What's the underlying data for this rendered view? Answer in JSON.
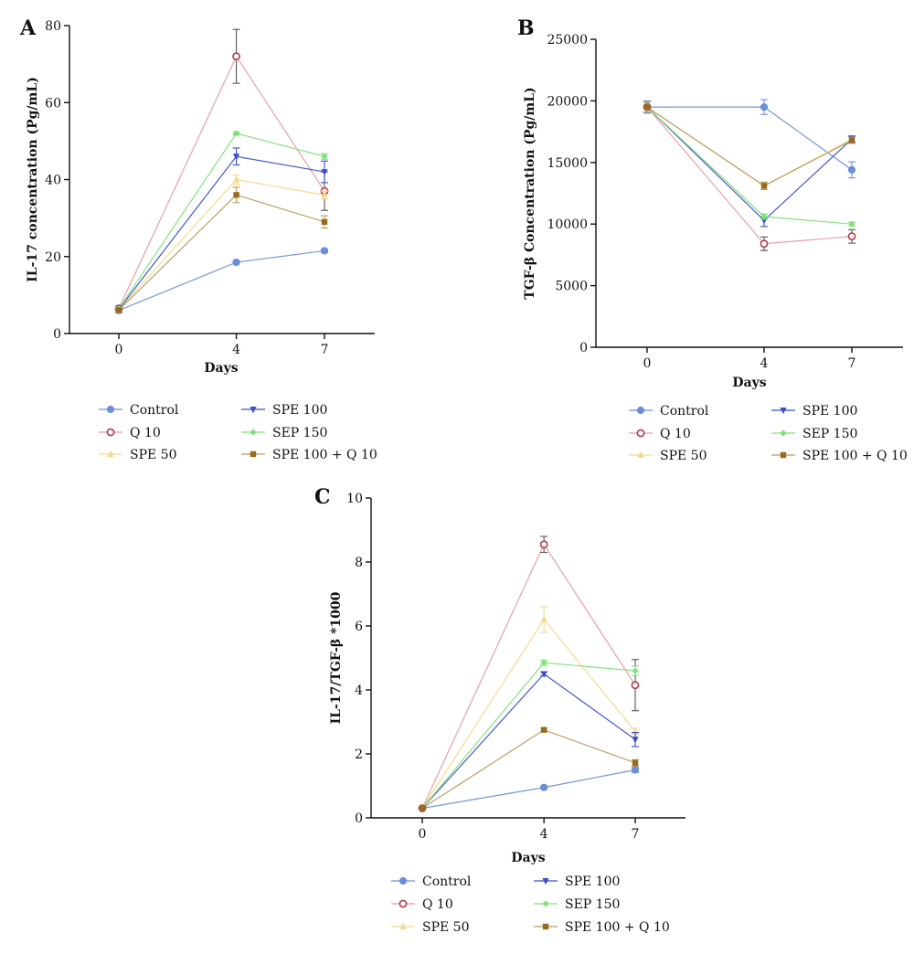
{
  "chart_data": [
    {
      "panel": "A",
      "type": "line",
      "xlabel": "Days",
      "ylabel": "IL-17 concentration (Pg/mL)",
      "x": [
        0,
        4,
        7
      ],
      "xticks": [
        "0",
        "4",
        "7"
      ],
      "ylim": [
        0,
        80
      ],
      "yticks": [
        "0",
        "20",
        "40",
        "60",
        "80"
      ],
      "grid": false,
      "legend_position": "bottom",
      "series": [
        {
          "name": "Control",
          "values": [
            6,
            18.5,
            21.5
          ],
          "err": [
            0.6,
            0.4,
            0.4
          ],
          "color": "#6b8fd6",
          "marker": "circle"
        },
        {
          "name": "Q 10",
          "values": [
            6.5,
            72,
            37
          ],
          "err": [
            0.6,
            7,
            5
          ],
          "color": "#e79aa6",
          "marker": "circle-open"
        },
        {
          "name": "SPE 50",
          "values": [
            6.2,
            40,
            36
          ],
          "err": [
            0.5,
            1.2,
            1
          ],
          "color": "#f2d98c",
          "marker": "triangle"
        },
        {
          "name": "SPE 100",
          "values": [
            6.3,
            46,
            42
          ],
          "err": [
            0.6,
            2.2,
            2.8
          ],
          "color": "#3a4fc6",
          "marker": "triangle-down"
        },
        {
          "name": "SEP 150",
          "values": [
            6.4,
            52,
            46
          ],
          "err": [
            0.5,
            0.4,
            0.7
          ],
          "color": "#7fe07a",
          "marker": "diamond"
        },
        {
          "name": "SPE 100 + Q 10",
          "values": [
            6.1,
            36,
            29
          ],
          "err": [
            0.5,
            2,
            1.6
          ],
          "color": "#b89a62",
          "marker": "square"
        }
      ]
    },
    {
      "panel": "B",
      "type": "line",
      "xlabel": "Days",
      "ylabel": "TGF-β Concentration (Pg/mL)",
      "x": [
        0,
        4,
        7
      ],
      "xticks": [
        "0",
        "4",
        "7"
      ],
      "ylim": [
        0,
        25000
      ],
      "yticks": [
        "0",
        "5000",
        "10000",
        "15000",
        "20000",
        "25000"
      ],
      "grid": false,
      "legend_position": "bottom",
      "series": [
        {
          "name": "Control",
          "values": [
            19500,
            19500,
            14400
          ],
          "err": [
            500,
            600,
            650
          ],
          "color": "#6b8fd6",
          "marker": "circle"
        },
        {
          "name": "Q 10",
          "values": [
            19500,
            8400,
            9000
          ],
          "err": [
            400,
            550,
            550
          ],
          "color": "#e79aa6",
          "marker": "circle-open"
        },
        {
          "name": "SPE 50",
          "values": [
            19500,
            13100,
            16900
          ],
          "err": [
            400,
            300,
            250
          ],
          "color": "#f2d98c",
          "marker": "triangle"
        },
        {
          "name": "SPE 100",
          "values": [
            19500,
            10300,
            16900
          ],
          "err": [
            400,
            500,
            250
          ],
          "color": "#3a4fc6",
          "marker": "triangle-down"
        },
        {
          "name": "SEP 150",
          "values": [
            19500,
            10600,
            10000
          ],
          "err": [
            400,
            200,
            150
          ],
          "color": "#7fe07a",
          "marker": "diamond"
        },
        {
          "name": "SPE 100 + Q 10",
          "values": [
            19500,
            13100,
            16800
          ],
          "err": [
            400,
            300,
            250
          ],
          "color": "#b89a62",
          "marker": "square"
        }
      ]
    },
    {
      "panel": "C",
      "type": "line",
      "xlabel": "Days",
      "ylabel": "IL-17/TGF-β *1000",
      "x": [
        0,
        4,
        7
      ],
      "xticks": [
        "0",
        "4",
        "7"
      ],
      "ylim": [
        0,
        10
      ],
      "yticks": [
        "0",
        "2",
        "4",
        "6",
        "8",
        "10"
      ],
      "grid": false,
      "legend_position": "bottom",
      "series": [
        {
          "name": "Control",
          "values": [
            0.3,
            0.95,
            1.5
          ],
          "err": [
            0.03,
            0.05,
            0.08
          ],
          "color": "#6b8fd6",
          "marker": "circle"
        },
        {
          "name": "Q 10",
          "values": [
            0.3,
            8.55,
            4.15
          ],
          "err": [
            0.03,
            0.25,
            0.8
          ],
          "color": "#e79aa6",
          "marker": "circle-open"
        },
        {
          "name": "SPE 50",
          "values": [
            0.3,
            6.2,
            2.7
          ],
          "err": [
            0.03,
            0.4,
            0.1
          ],
          "color": "#f2d98c",
          "marker": "triangle"
        },
        {
          "name": "SPE 100",
          "values": [
            0.3,
            4.5,
            2.45
          ],
          "err": [
            0.03,
            0.06,
            0.22
          ],
          "color": "#3a4fc6",
          "marker": "triangle-down"
        },
        {
          "name": "SEP 150",
          "values": [
            0.3,
            4.85,
            4.6
          ],
          "err": [
            0.03,
            0.08,
            0.15
          ],
          "color": "#7fe07a",
          "marker": "diamond"
        },
        {
          "name": "SPE 100 + Q 10",
          "values": [
            0.3,
            2.75,
            1.72
          ],
          "err": [
            0.03,
            0.05,
            0.1
          ],
          "color": "#b89a62",
          "marker": "square"
        }
      ]
    }
  ]
}
